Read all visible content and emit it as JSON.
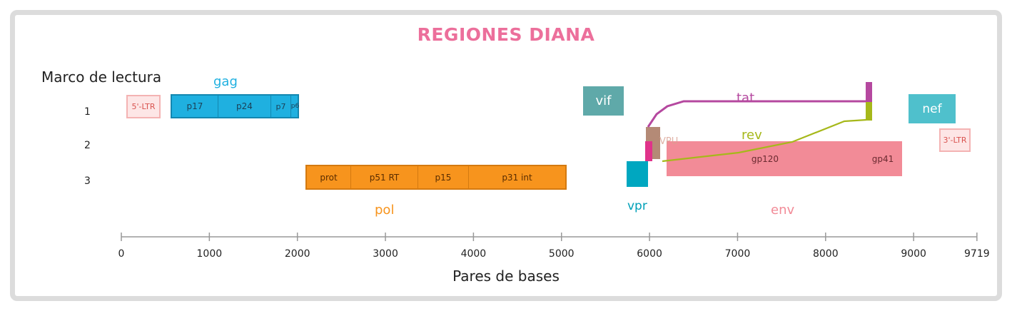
{
  "title": "REGIONES DIANA",
  "reading_frame_label": "Marco de lectura",
  "frame_numbers": [
    "1",
    "2",
    "3"
  ],
  "x_axis_label": "Pares de bases",
  "x_ticks": [
    "0",
    "1000",
    "2000",
    "3000",
    "4000",
    "5000",
    "6000",
    "7000",
    "8000",
    "9000",
    "9719"
  ],
  "colors": {
    "gag": "#1fb0e0",
    "pol": "#f7941d",
    "vif": "#5fa9a9",
    "vpr": "#00a7c0",
    "vpu": "#b48a76",
    "vpu_marker": "#e0338a",
    "tat": "#b5489f",
    "rev": "#a6b81a",
    "env": "#f28b97",
    "nef": "#4fc0cc",
    "ltr": "#f4b3b3",
    "title": "#ec6f9b"
  },
  "genes": {
    "ltr5": {
      "label": "5'-LTR"
    },
    "ltr3": {
      "label": "3'-LTR"
    },
    "gag": {
      "label": "gag",
      "segments": [
        "p17",
        "p24",
        "p7",
        "p6"
      ]
    },
    "pol": {
      "label": "pol",
      "segments": [
        "prot",
        "p51 RT",
        "p15",
        "p31 int"
      ]
    },
    "vif": {
      "label": "vif"
    },
    "vpr": {
      "label": "vpr"
    },
    "vpu": {
      "label": "VPU"
    },
    "tat": {
      "label": "tat"
    },
    "rev": {
      "label": "rev"
    },
    "env": {
      "label": "env",
      "segments": [
        "gp120",
        "gp41"
      ]
    },
    "nef": {
      "label": "nef"
    }
  }
}
